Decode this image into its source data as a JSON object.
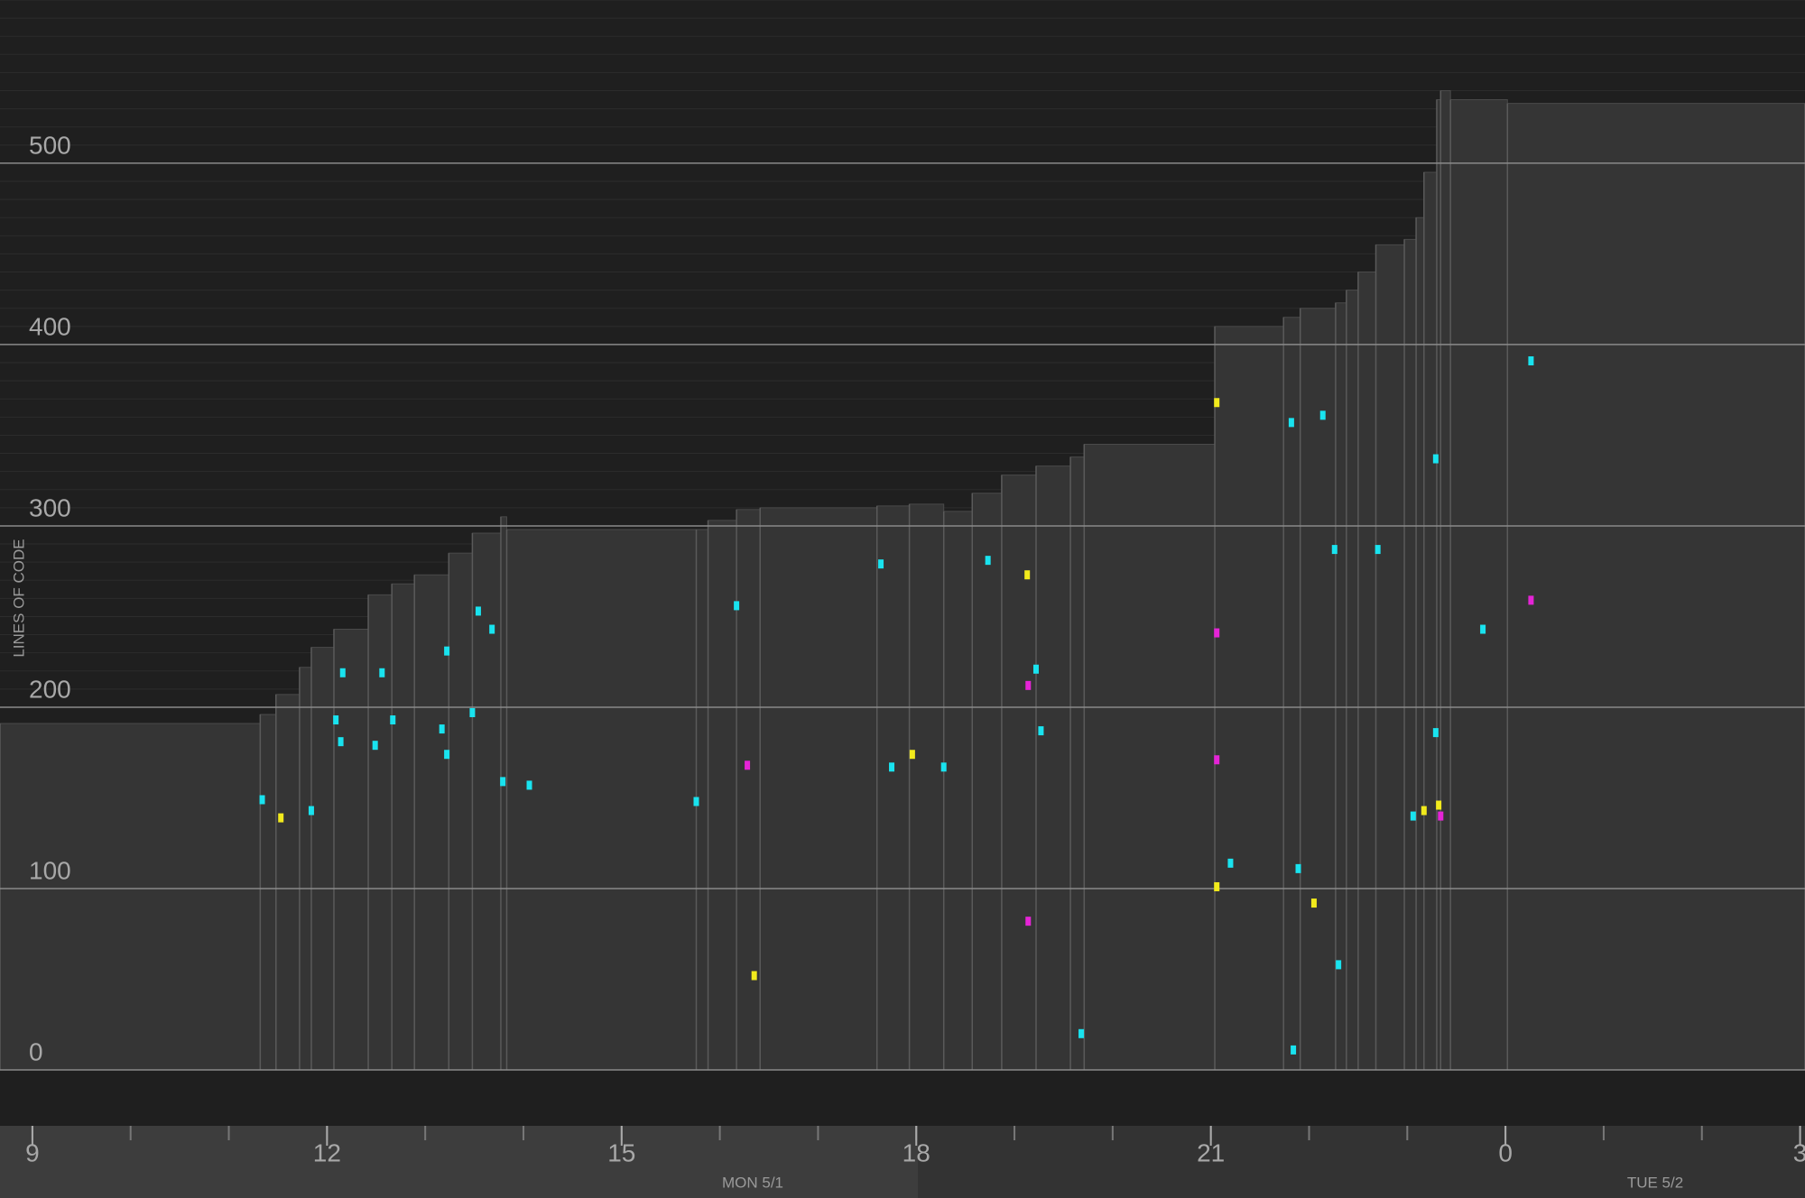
{
  "chart_data": {
    "type": "step-area",
    "y_label": "LINES OF CODE",
    "date_labels": [
      "MON 5/1",
      "TUE 5/2"
    ],
    "x": [
      8.67,
      11.32,
      11.48,
      11.72,
      11.84,
      12.07,
      12.42,
      12.66,
      12.89,
      13.24,
      13.48,
      13.77,
      13.83,
      15.76,
      15.88,
      16.17,
      16.41,
      17.6,
      17.93,
      18.28,
      18.57,
      18.87,
      19.22,
      19.57,
      19.71,
      21.04,
      21.74,
      21.91,
      22.27,
      22.38,
      22.5,
      22.68,
      22.97,
      23.09,
      23.17,
      23.3,
      23.34,
      23.44,
      24.02,
      27.05
    ],
    "values": [
      191,
      196,
      207,
      222,
      233,
      243,
      262,
      268,
      273,
      285,
      296,
      305,
      298,
      298,
      303,
      309,
      310,
      311,
      312,
      308,
      318,
      328,
      333,
      338,
      345,
      410,
      415,
      420,
      423,
      430,
      440,
      455,
      458,
      470,
      495,
      535,
      540,
      535,
      533,
      533
    ],
    "color": "#353535",
    "edits": [
      {
        "color": "#19e3ef",
        "x": [
          13.54,
          13.68,
          13.22,
          12.16,
          12.56,
          12.09,
          12.67,
          13.17,
          13.48,
          12.14,
          12.49,
          13.22,
          13.79,
          14.06,
          11.84,
          11.34,
          17.64,
          18.73,
          19.22,
          19.27,
          17.75,
          18.28,
          16.17,
          15.76,
          21.82,
          22.14,
          22.26,
          22.7,
          23.29,
          24.26,
          23.77,
          23.29,
          21.2,
          21.89,
          22.3,
          21.84,
          19.68,
          23.06
        ],
        "y": [
          253,
          243,
          231,
          219,
          219,
          193,
          193,
          188,
          197,
          181,
          179,
          174,
          159,
          157,
          143,
          149,
          279,
          281,
          221,
          187,
          167,
          167,
          256,
          148,
          357,
          361,
          287,
          287,
          337,
          391,
          243,
          186,
          114,
          111,
          58,
          11,
          20,
          140
        ]
      },
      {
        "color": "#f2ea1c",
        "x": [
          21.06,
          19.13,
          16.35,
          21.06,
          23.17,
          23.32,
          11.53,
          22.05,
          17.96
        ],
        "y": [
          368,
          273,
          52,
          101,
          143,
          146,
          139,
          92,
          174
        ]
      },
      {
        "color": "#e524d6",
        "x": [
          19.14,
          19.14,
          21.06,
          21.06,
          23.34,
          16.28,
          24.26
        ],
        "y": [
          82,
          212,
          241,
          171,
          140,
          168,
          259
        ]
      }
    ],
    "xlim": [
      8.67,
      27.05
    ],
    "ylim": [
      0,
      590
    ],
    "xticks": [
      9,
      12,
      15,
      18,
      21,
      {
        "value": 24,
        "label": "0"
      },
      {
        "value": 27,
        "label": "3"
      }
    ],
    "yticks": [
      0,
      100,
      200,
      300,
      400,
      500
    ],
    "grid": true
  }
}
